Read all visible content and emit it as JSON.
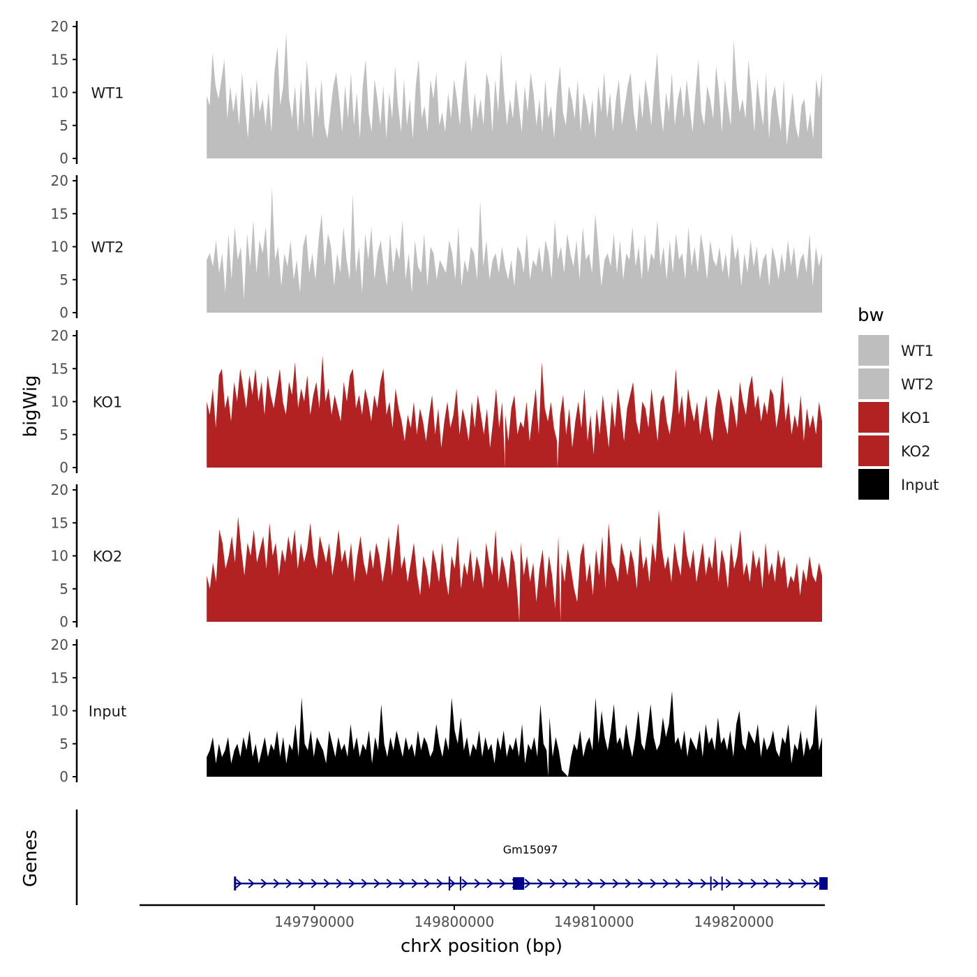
{
  "chart_data": {
    "type": "area",
    "title": "",
    "xlabel": "chrX position (bp)",
    "ylabel": "bigWig",
    "genes_label": "Genes",
    "x_range": [
      149777500,
      149826500
    ],
    "xticks": [
      149790000,
      149800000,
      149810000,
      149820000
    ],
    "xtick_labels": [
      "149790000",
      "149800000",
      "149810000",
      "149820000"
    ],
    "ylim": [
      0,
      20
    ],
    "yticks": [
      0,
      5,
      10,
      15,
      20
    ],
    "ytick_labels": [
      "0",
      "5",
      "10",
      "15",
      "20"
    ],
    "legend": {
      "title": "bw",
      "entries": [
        {
          "name": "WT1",
          "color": "#bebebe"
        },
        {
          "name": "WT2",
          "color": "#bebebe"
        },
        {
          "name": "KO1",
          "color": "#b22222"
        },
        {
          "name": "KO2",
          "color": "#b22222"
        },
        {
          "name": "Input",
          "color": "#000000"
        }
      ]
    },
    "signal_x_start": 149782300,
    "signal_x_end": 149826300,
    "series": [
      {
        "name": "WT1",
        "color": "#bebebe",
        "values": [
          9.5,
          8,
          16,
          11,
          9,
          12,
          15,
          6,
          11,
          7,
          10,
          5,
          13,
          8,
          3,
          11,
          6,
          12,
          7,
          9,
          5,
          10,
          4,
          13,
          17,
          8,
          11,
          19,
          9,
          6,
          11,
          4,
          12,
          5,
          15,
          9,
          3,
          11,
          6,
          12,
          5,
          3,
          7,
          11,
          13,
          9,
          4,
          11,
          6,
          13,
          5,
          10,
          3,
          11,
          15,
          7,
          4,
          12,
          9,
          5,
          11,
          3,
          10,
          6,
          14,
          8,
          4,
          12,
          5,
          9,
          3,
          11,
          15,
          6,
          8,
          4,
          12,
          9,
          13,
          5,
          7,
          4,
          10,
          6,
          12,
          9,
          5,
          11,
          15,
          8,
          4,
          10,
          6,
          9,
          5,
          13,
          11,
          4,
          12,
          7,
          16,
          10,
          5,
          9,
          6,
          12,
          8,
          4,
          11,
          7,
          13,
          10,
          5,
          9,
          4,
          12,
          6,
          8,
          3,
          10,
          14,
          7,
          5,
          11,
          9,
          6,
          12,
          4,
          10,
          8,
          5,
          9,
          3,
          11,
          7,
          13,
          6,
          10,
          4,
          9,
          12,
          5,
          8,
          11,
          13,
          7,
          4,
          10,
          6,
          12,
          9,
          5,
          11,
          16,
          8,
          4,
          10,
          7,
          13,
          5,
          9,
          11,
          6,
          12,
          8,
          4,
          10,
          15,
          7,
          5,
          11,
          9,
          6,
          14,
          10,
          4,
          12,
          8,
          5,
          18,
          11,
          7,
          9,
          6,
          15,
          10,
          4,
          12,
          8,
          5,
          13,
          3,
          9,
          11,
          7,
          4,
          12,
          2,
          6,
          10,
          5,
          3,
          8,
          9,
          4,
          7,
          3,
          12,
          9,
          13
        ],
        "min_positions": []
      },
      {
        "name": "WT2",
        "color": "#bebebe",
        "values": [
          8,
          9,
          7,
          11,
          6,
          9,
          3,
          12,
          5,
          13,
          8,
          10,
          2,
          12,
          7,
          14,
          6,
          11,
          9,
          13,
          5,
          19,
          8,
          10,
          4,
          9,
          7,
          11,
          5,
          8,
          3,
          10,
          12,
          6,
          9,
          5,
          11,
          15,
          7,
          12,
          10,
          4,
          9,
          6,
          13,
          8,
          5,
          18,
          6,
          10,
          3,
          12,
          8,
          13,
          5,
          9,
          11,
          7,
          4,
          12,
          6,
          10,
          8,
          14,
          5,
          9,
          3,
          11,
          7,
          6,
          12,
          4,
          10,
          9,
          5,
          8,
          7,
          6,
          11,
          9,
          5,
          13,
          4,
          8,
          6,
          10,
          9,
          5,
          17,
          7,
          11,
          5,
          8,
          9,
          6,
          10,
          7,
          5,
          8,
          4,
          10,
          9,
          6,
          12,
          5,
          8,
          7,
          10,
          6,
          11,
          9,
          5,
          14,
          8,
          10,
          6,
          12,
          9,
          7,
          11,
          5,
          13,
          8,
          9,
          6,
          15,
          10,
          4,
          8,
          9,
          7,
          12,
          6,
          11,
          5,
          9,
          8,
          13,
          7,
          10,
          5,
          12,
          6,
          9,
          8,
          14,
          7,
          10,
          5,
          11,
          6,
          12,
          8,
          9,
          5,
          13,
          7,
          10,
          6,
          12,
          9,
          5,
          11,
          8,
          7,
          10,
          6,
          9,
          5,
          12,
          8,
          10,
          4,
          9,
          6,
          11,
          7,
          10,
          5,
          8,
          9,
          4,
          10,
          8,
          5,
          9,
          6,
          11,
          7,
          10,
          5,
          8,
          9,
          6,
          12,
          4,
          10,
          7,
          9
        ],
        "min_positions": []
      },
      {
        "name": "KO1",
        "color": "#b22222",
        "values": [
          10,
          8,
          12,
          6,
          14,
          15,
          9,
          11,
          7,
          13,
          10,
          15,
          12,
          9,
          14,
          11,
          15,
          10,
          13,
          8,
          14,
          11,
          9,
          12,
          15,
          10,
          8,
          13,
          11,
          16,
          9,
          12,
          10,
          14,
          8,
          11,
          13,
          9,
          17,
          10,
          12,
          8,
          11,
          9,
          7,
          13,
          10,
          14,
          15,
          9,
          11,
          8,
          12,
          10,
          7,
          11,
          9,
          13,
          15,
          8,
          10,
          6,
          12,
          9,
          7,
          4,
          8,
          6,
          10,
          5,
          9,
          7,
          4,
          8,
          11,
          5,
          9,
          3,
          7,
          10,
          6,
          8,
          12,
          5,
          9,
          7,
          4,
          10,
          6,
          11,
          8,
          5,
          9,
          3,
          7,
          12,
          6,
          10,
          8,
          4,
          9,
          11,
          5,
          7,
          6,
          10,
          4,
          8,
          12,
          5,
          16,
          9,
          7,
          10,
          6,
          4,
          8,
          11,
          5,
          9,
          3,
          7,
          10,
          6,
          12,
          4,
          8,
          2,
          9,
          5,
          11,
          7,
          3,
          10,
          6,
          12,
          8,
          4,
          9,
          11,
          13,
          7,
          5,
          10,
          9,
          6,
          12,
          8,
          4,
          10,
          11,
          7,
          5,
          9,
          15,
          8,
          11,
          6,
          12,
          9,
          7,
          10,
          5,
          8,
          11,
          6,
          4,
          9,
          12,
          10,
          7,
          5,
          11,
          9,
          6,
          13,
          10,
          8,
          12,
          14,
          9,
          11,
          7,
          10,
          8,
          12,
          11,
          6,
          9,
          14,
          7,
          10,
          5,
          8,
          6,
          11,
          4,
          9,
          6,
          8,
          5,
          10,
          7
        ],
        "min_positions": [
          0.485,
          0.57
        ]
      },
      {
        "name": "KO2",
        "color": "#b22222",
        "values": [
          7,
          5,
          9,
          6,
          14,
          12,
          8,
          10,
          13,
          9,
          16,
          11,
          7,
          12,
          10,
          14,
          9,
          11,
          13,
          8,
          15,
          10,
          12,
          7,
          11,
          9,
          13,
          10,
          14,
          8,
          12,
          9,
          11,
          15,
          10,
          8,
          13,
          11,
          9,
          12,
          7,
          10,
          14,
          9,
          11,
          8,
          12,
          6,
          10,
          13,
          9,
          7,
          11,
          8,
          12,
          10,
          6,
          9,
          13,
          7,
          11,
          15,
          8,
          10,
          6,
          9,
          12,
          7,
          4,
          10,
          8,
          5,
          11,
          9,
          6,
          12,
          7,
          4,
          10,
          8,
          13,
          5,
          9,
          7,
          11,
          6,
          10,
          8,
          5,
          12,
          9,
          7,
          14,
          6,
          10,
          8,
          5,
          11,
          9,
          4,
          12,
          7,
          10,
          6,
          9,
          3,
          8,
          11,
          5,
          10,
          7,
          2,
          13,
          9,
          6,
          11,
          8,
          5,
          3,
          10,
          12,
          6,
          9,
          4,
          11,
          7,
          13,
          5,
          15,
          9,
          8,
          6,
          12,
          10,
          7,
          11,
          9,
          5,
          13,
          8,
          10,
          6,
          12,
          9,
          17,
          11,
          8,
          10,
          6,
          12,
          9,
          7,
          14,
          10,
          8,
          11,
          6,
          9,
          12,
          7,
          10,
          8,
          13,
          6,
          11,
          9,
          5,
          12,
          8,
          10,
          14,
          7,
          9,
          6,
          11,
          8,
          10,
          5,
          12,
          7,
          9,
          6,
          11,
          8,
          10,
          5,
          7,
          6,
          9,
          4,
          8,
          6,
          10,
          7,
          6,
          9,
          7
        ],
        "min_positions": [
          0.508,
          0.575
        ]
      },
      {
        "name": "Input",
        "color": "#000000",
        "values": [
          3,
          4,
          6,
          2,
          5,
          3,
          4,
          6,
          2,
          4,
          5,
          3,
          6,
          4,
          7,
          3,
          5,
          2,
          4,
          6,
          3,
          5,
          4,
          7,
          3,
          6,
          2,
          5,
          4,
          8,
          3,
          12,
          5,
          4,
          7,
          3,
          6,
          5,
          4,
          2,
          7,
          5,
          3,
          6,
          4,
          5,
          3,
          8,
          4,
          6,
          3,
          5,
          4,
          7,
          2,
          6,
          4,
          11,
          5,
          3,
          6,
          4,
          7,
          5,
          3,
          6,
          4,
          5,
          3,
          7,
          4,
          6,
          5,
          3,
          4,
          8,
          5,
          3,
          6,
          4,
          12,
          7,
          5,
          9,
          4,
          6,
          3,
          5,
          4,
          7,
          3,
          6,
          4,
          5,
          2,
          6,
          4,
          7,
          3,
          5,
          4,
          6,
          3,
          8,
          2,
          5,
          4,
          6,
          3,
          11,
          5,
          4,
          9,
          3,
          6,
          4,
          1,
          0.5,
          0,
          3,
          5,
          4,
          7,
          3,
          5,
          6,
          4,
          12,
          5,
          10,
          6,
          4,
          7,
          11,
          5,
          6,
          4,
          8,
          5,
          3,
          6,
          10,
          5,
          4,
          7,
          11,
          6,
          4,
          5,
          9,
          6,
          8,
          13,
          5,
          6,
          4,
          7,
          3,
          6,
          5,
          4,
          7,
          3,
          8,
          5,
          6,
          4,
          9,
          5,
          6,
          4,
          7,
          3,
          8,
          10,
          5,
          4,
          7,
          6,
          5,
          8,
          3,
          6,
          4,
          5,
          7,
          4,
          3,
          6,
          5,
          8,
          2,
          5,
          4,
          7,
          3,
          6,
          4,
          5,
          11,
          4,
          6
        ],
        "min_positions": [
          0.555
        ]
      }
    ],
    "genes": [
      {
        "name": "Gm15097",
        "start": 149784300,
        "end": 149826600,
        "strand": "+",
        "color": "#00008b",
        "exons": [
          {
            "start": 149784250,
            "end": 149784400
          },
          {
            "start": 149799600,
            "end": 149799700
          },
          {
            "start": 149800400,
            "end": 149800500
          },
          {
            "start": 149804200,
            "end": 149805000
          },
          {
            "start": 149818300,
            "end": 149818400
          },
          {
            "start": 149819100,
            "end": 149819200
          },
          {
            "start": 149826100,
            "end": 149826700
          }
        ]
      }
    ]
  }
}
